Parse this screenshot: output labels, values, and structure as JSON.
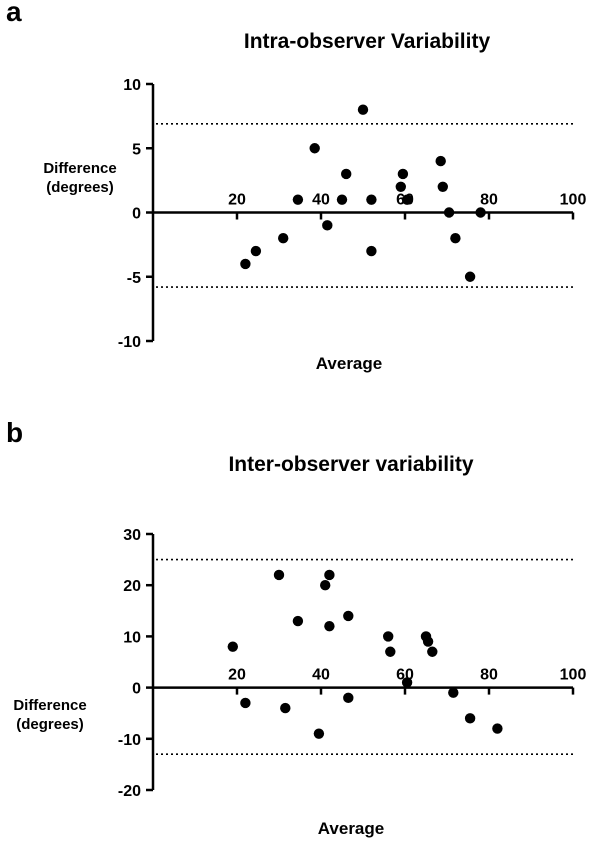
{
  "chart_data": [
    {
      "type": "scatter",
      "panel_label": "a",
      "title": "Intra-observer Variability",
      "xlabel": "Average",
      "ylabel_line1": "Difference",
      "ylabel_line2": "(degrees)",
      "xlim": [
        0,
        100
      ],
      "ylim": [
        -10,
        10
      ],
      "xticks": [
        20,
        40,
        60,
        80,
        100
      ],
      "yticks": [
        10,
        5,
        0,
        -5,
        -10
      ],
      "limits_of_agreement": [
        6.9,
        -5.8
      ],
      "points": [
        {
          "x": 22,
          "y": -4
        },
        {
          "x": 24.5,
          "y": -3
        },
        {
          "x": 31,
          "y": -2
        },
        {
          "x": 34.5,
          "y": 1
        },
        {
          "x": 38.5,
          "y": 5
        },
        {
          "x": 41.5,
          "y": -1
        },
        {
          "x": 45,
          "y": 1
        },
        {
          "x": 46,
          "y": 3
        },
        {
          "x": 50,
          "y": 8
        },
        {
          "x": 52,
          "y": 1
        },
        {
          "x": 52,
          "y": -3
        },
        {
          "x": 59,
          "y": 2
        },
        {
          "x": 59.5,
          "y": 3
        },
        {
          "x": 60.5,
          "y": 1
        },
        {
          "x": 68.5,
          "y": 4
        },
        {
          "x": 69,
          "y": 2
        },
        {
          "x": 70.5,
          "y": 0
        },
        {
          "x": 72,
          "y": -2
        },
        {
          "x": 75.5,
          "y": -5
        },
        {
          "x": 78,
          "y": 0
        }
      ]
    },
    {
      "type": "scatter",
      "panel_label": "b",
      "title": "Inter-observer variability",
      "xlabel": "Average",
      "ylabel_line1": "Difference",
      "ylabel_line2": "(degrees)",
      "xlim": [
        0,
        100
      ],
      "ylim": [
        -20,
        30
      ],
      "xticks": [
        20,
        40,
        60,
        80,
        100
      ],
      "yticks": [
        30,
        20,
        10,
        0,
        -10,
        -20
      ],
      "limits_of_agreement": [
        25,
        -13
      ],
      "points": [
        {
          "x": 19,
          "y": 8
        },
        {
          "x": 22,
          "y": -3
        },
        {
          "x": 30,
          "y": 22
        },
        {
          "x": 31.5,
          "y": -4
        },
        {
          "x": 34.5,
          "y": 13
        },
        {
          "x": 39.5,
          "y": -9
        },
        {
          "x": 41,
          "y": 20
        },
        {
          "x": 42,
          "y": 22
        },
        {
          "x": 42,
          "y": 12
        },
        {
          "x": 46.5,
          "y": 14
        },
        {
          "x": 46.5,
          "y": -2
        },
        {
          "x": 56,
          "y": 10
        },
        {
          "x": 56.5,
          "y": 7
        },
        {
          "x": 60.5,
          "y": 1
        },
        {
          "x": 65,
          "y": 10
        },
        {
          "x": 65.5,
          "y": 9
        },
        {
          "x": 66.5,
          "y": 7
        },
        {
          "x": 71.5,
          "y": -1
        },
        {
          "x": 75.5,
          "y": -6
        },
        {
          "x": 82,
          "y": -8
        }
      ]
    }
  ]
}
